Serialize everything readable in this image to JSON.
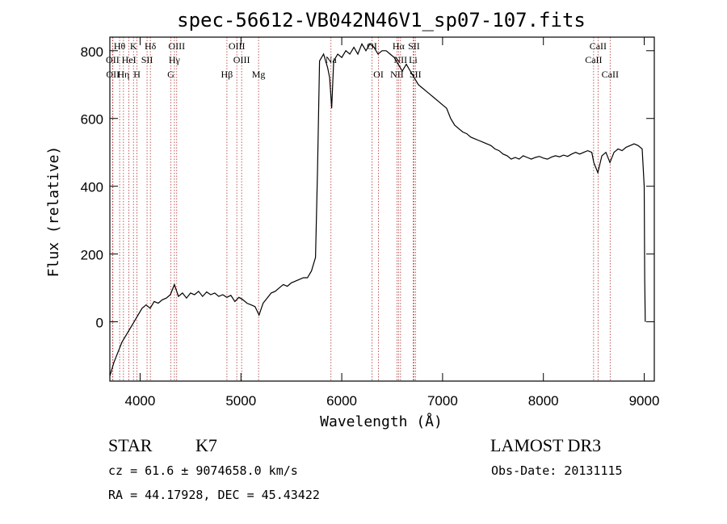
{
  "chart_data": {
    "type": "line",
    "title": "spec-56612-VB042N46V1_sp07-107.fits",
    "xlabel": "Wavelength (Å)",
    "ylabel": "Flux (relative)",
    "xlim": [
      3700,
      9100
    ],
    "ylim": [
      -175,
      840
    ],
    "x_ticks": [
      4000,
      5000,
      6000,
      7000,
      8000,
      9000
    ],
    "x_tick_labels": [
      "4000",
      "5000",
      "6000",
      "7000",
      "8000",
      "9000"
    ],
    "y_ticks": [
      0,
      200,
      400,
      600,
      800
    ],
    "y_tick_labels": [
      "0",
      "200",
      "400",
      "600",
      "800"
    ],
    "line_color": "#000000",
    "marker_color": "#b03030",
    "spectrum": [
      [
        3700,
        -160
      ],
      [
        3740,
        -120
      ],
      [
        3780,
        -90
      ],
      [
        3820,
        -60
      ],
      [
        3860,
        -40
      ],
      [
        3900,
        -20
      ],
      [
        3940,
        0
      ],
      [
        3980,
        20
      ],
      [
        4020,
        40
      ],
      [
        4060,
        50
      ],
      [
        4100,
        40
      ],
      [
        4140,
        60
      ],
      [
        4180,
        55
      ],
      [
        4220,
        65
      ],
      [
        4260,
        70
      ],
      [
        4300,
        80
      ],
      [
        4340,
        110
      ],
      [
        4380,
        75
      ],
      [
        4420,
        85
      ],
      [
        4460,
        70
      ],
      [
        4500,
        85
      ],
      [
        4540,
        80
      ],
      [
        4580,
        90
      ],
      [
        4620,
        75
      ],
      [
        4660,
        88
      ],
      [
        4700,
        80
      ],
      [
        4740,
        85
      ],
      [
        4780,
        75
      ],
      [
        4820,
        80
      ],
      [
        4860,
        72
      ],
      [
        4900,
        78
      ],
      [
        4940,
        60
      ],
      [
        4980,
        72
      ],
      [
        5020,
        65
      ],
      [
        5060,
        55
      ],
      [
        5100,
        50
      ],
      [
        5140,
        45
      ],
      [
        5180,
        20
      ],
      [
        5220,
        55
      ],
      [
        5260,
        70
      ],
      [
        5300,
        85
      ],
      [
        5340,
        90
      ],
      [
        5380,
        100
      ],
      [
        5420,
        110
      ],
      [
        5460,
        105
      ],
      [
        5500,
        115
      ],
      [
        5540,
        120
      ],
      [
        5580,
        125
      ],
      [
        5620,
        130
      ],
      [
        5660,
        130
      ],
      [
        5700,
        150
      ],
      [
        5720,
        170
      ],
      [
        5740,
        190
      ],
      [
        5760,
        450
      ],
      [
        5780,
        770
      ],
      [
        5800,
        780
      ],
      [
        5820,
        790
      ],
      [
        5840,
        770
      ],
      [
        5860,
        750
      ],
      [
        5880,
        720
      ],
      [
        5900,
        630
      ],
      [
        5920,
        770
      ],
      [
        5960,
        790
      ],
      [
        6000,
        780
      ],
      [
        6040,
        800
      ],
      [
        6080,
        790
      ],
      [
        6120,
        810
      ],
      [
        6160,
        790
      ],
      [
        6200,
        820
      ],
      [
        6240,
        800
      ],
      [
        6280,
        820
      ],
      [
        6320,
        810
      ],
      [
        6360,
        790
      ],
      [
        6400,
        800
      ],
      [
        6440,
        800
      ],
      [
        6480,
        790
      ],
      [
        6520,
        780
      ],
      [
        6560,
        760
      ],
      [
        6600,
        740
      ],
      [
        6640,
        760
      ],
      [
        6680,
        740
      ],
      [
        6720,
        720
      ],
      [
        6760,
        700
      ],
      [
        6800,
        690
      ],
      [
        6840,
        680
      ],
      [
        6880,
        670
      ],
      [
        6920,
        660
      ],
      [
        6960,
        650
      ],
      [
        7000,
        640
      ],
      [
        7040,
        630
      ],
      [
        7080,
        600
      ],
      [
        7120,
        580
      ],
      [
        7160,
        570
      ],
      [
        7200,
        560
      ],
      [
        7240,
        555
      ],
      [
        7280,
        545
      ],
      [
        7320,
        540
      ],
      [
        7360,
        535
      ],
      [
        7400,
        530
      ],
      [
        7440,
        525
      ],
      [
        7480,
        520
      ],
      [
        7520,
        510
      ],
      [
        7560,
        505
      ],
      [
        7600,
        495
      ],
      [
        7640,
        490
      ],
      [
        7680,
        480
      ],
      [
        7720,
        485
      ],
      [
        7760,
        480
      ],
      [
        7800,
        490
      ],
      [
        7840,
        485
      ],
      [
        7880,
        480
      ],
      [
        7920,
        485
      ],
      [
        7960,
        488
      ],
      [
        8000,
        483
      ],
      [
        8040,
        480
      ],
      [
        8080,
        486
      ],
      [
        8120,
        490
      ],
      [
        8160,
        487
      ],
      [
        8200,
        492
      ],
      [
        8240,
        488
      ],
      [
        8280,
        495
      ],
      [
        8320,
        500
      ],
      [
        8360,
        495
      ],
      [
        8400,
        500
      ],
      [
        8440,
        505
      ],
      [
        8480,
        500
      ],
      [
        8500,
        470
      ],
      [
        8540,
        440
      ],
      [
        8580,
        490
      ],
      [
        8620,
        500
      ],
      [
        8660,
        470
      ],
      [
        8700,
        500
      ],
      [
        8740,
        510
      ],
      [
        8780,
        505
      ],
      [
        8820,
        515
      ],
      [
        8860,
        520
      ],
      [
        8900,
        525
      ],
      [
        8940,
        520
      ],
      [
        8980,
        510
      ],
      [
        9000,
        400
      ],
      [
        9005,
        130
      ],
      [
        9010,
        0
      ]
    ],
    "lines": [
      {
        "label": "Hθ",
        "wavelength": 3797,
        "row": 1
      },
      {
        "label": "OII",
        "wavelength": 3727,
        "row": 2
      },
      {
        "label": "OII",
        "wavelength": 3730,
        "row": 3
      },
      {
        "label": "K",
        "wavelength": 3934,
        "row": 1
      },
      {
        "label": "HeI",
        "wavelength": 3889,
        "row": 2
      },
      {
        "label": "Hη",
        "wavelength": 3835,
        "row": 3
      },
      {
        "label": "Hδ",
        "wavelength": 4102,
        "row": 1
      },
      {
        "label": "SII",
        "wavelength": 4069,
        "row": 2
      },
      {
        "label": "H",
        "wavelength": 3969,
        "row": 3
      },
      {
        "label": "OIII",
        "wavelength": 4363,
        "row": 1
      },
      {
        "label": "Hγ",
        "wavelength": 4340,
        "row": 2
      },
      {
        "label": "G",
        "wavelength": 4305,
        "row": 3
      },
      {
        "label": "OIII",
        "wavelength": 4959,
        "row": 1
      },
      {
        "label": "OIII",
        "wavelength": 5007,
        "row": 2
      },
      {
        "label": "Hβ",
        "wavelength": 4861,
        "row": 3
      },
      {
        "label": "Mg",
        "wavelength": 5175,
        "row": 3
      },
      {
        "label": "Na",
        "wavelength": 5893,
        "row": 2
      },
      {
        "label": "OI",
        "wavelength": 6300,
        "row": 1
      },
      {
        "label": "OI",
        "wavelength": 6364,
        "row": 3
      },
      {
        "label": "Hα",
        "wavelength": 6563,
        "row": 1
      },
      {
        "label": "SII",
        "wavelength": 6716,
        "row": 1
      },
      {
        "label": "NII",
        "wavelength": 6583,
        "row": 2
      },
      {
        "label": "Li",
        "wavelength": 6708,
        "row": 2
      },
      {
        "label": "NII",
        "wavelength": 6548,
        "row": 3
      },
      {
        "label": "SII",
        "wavelength": 6731,
        "row": 3
      },
      {
        "label": "CaII",
        "wavelength": 8542,
        "row": 1
      },
      {
        "label": "CaII",
        "wavelength": 8498,
        "row": 2
      },
      {
        "label": "CaII",
        "wavelength": 8662,
        "row": 3
      }
    ]
  },
  "info": {
    "class": "STAR",
    "subclass": "K7",
    "survey": "LAMOST DR3",
    "redshift": "cz = 61.6 ± 9074658.0 km/s",
    "obs_date": "Obs-Date: 20131115",
    "coords": "RA =  44.17928, DEC =  45.43422"
  }
}
